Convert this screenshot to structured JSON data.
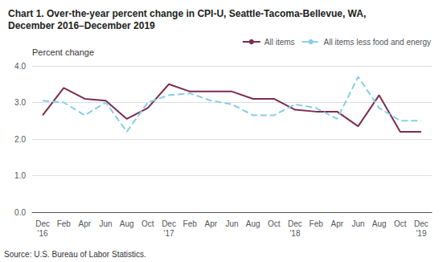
{
  "chart_data": {
    "type": "line",
    "title": "Chart 1. Over-the-year percent change in CPI-U, Seattle-Tacoma-Bellevue, WA,\nDecember 2016–December 2019",
    "ylabel": "Percent change",
    "source": "Source: U.S. Bureau of Labor Statistics.",
    "categories": [
      "Dec\n'16",
      "Feb",
      "Apr",
      "Jun",
      "Aug",
      "Oct",
      "Dec\n'17",
      "Feb",
      "Apr",
      "Jun",
      "Aug",
      "Oct",
      "Dec\n'18",
      "Feb",
      "Apr",
      "Jun",
      "Aug",
      "Oct",
      "Dec\n'19"
    ],
    "series": [
      {
        "name": "All items",
        "color": "#7B2D52",
        "line_style": "solid",
        "values": [
          2.65,
          3.4,
          3.1,
          3.05,
          2.55,
          2.85,
          3.5,
          3.3,
          3.3,
          3.3,
          3.1,
          3.1,
          2.8,
          2.75,
          2.75,
          2.35,
          3.2,
          2.2,
          2.2
        ]
      },
      {
        "name": "All items less food and energy",
        "color": "#87CEEB",
        "line_style": "dashed",
        "values": [
          3.05,
          3.0,
          2.65,
          3.0,
          2.2,
          3.0,
          3.2,
          3.25,
          3.05,
          2.95,
          2.65,
          2.65,
          2.95,
          2.85,
          2.55,
          3.7,
          2.85,
          2.5,
          2.5
        ]
      }
    ],
    "ylim": [
      0.0,
      4.0
    ],
    "yticks": [
      {
        "value": 0,
        "label": "0.0"
      },
      {
        "value": 1,
        "label": "1.0"
      },
      {
        "value": 2,
        "label": "2.0"
      },
      {
        "value": 3,
        "label": "3.0"
      },
      {
        "value": 4,
        "label": "4.0"
      }
    ],
    "grid": true,
    "legend": "upper right"
  }
}
